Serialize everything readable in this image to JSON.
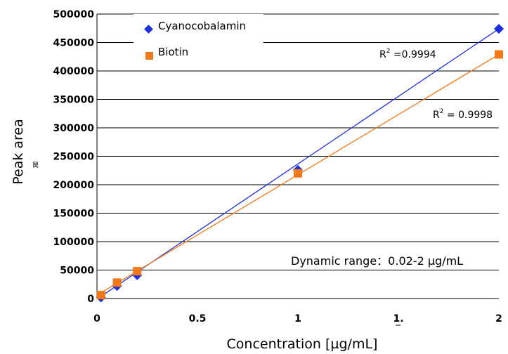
{
  "chart_data": {
    "type": "scatter",
    "xlabel": "Concentration [µg/mL]",
    "ylabel": "Peak area",
    "xlim": [
      0,
      2
    ],
    "ylim": [
      0,
      500000
    ],
    "x_ticks": [
      "0",
      "0.5",
      "1",
      "1.",
      "2"
    ],
    "x_tick_values": [
      0,
      0.5,
      1,
      1.5,
      2
    ],
    "y_ticks": [
      "0",
      "50000",
      "100000",
      "150000",
      "200000",
      "250000",
      "300000",
      "350000",
      "400000",
      "450000",
      "500000"
    ],
    "y_tick_values": [
      0,
      50000,
      100000,
      150000,
      200000,
      250000,
      300000,
      350000,
      400000,
      450000,
      500000
    ],
    "grid": "horizontal",
    "legend_position": "top-left",
    "series": [
      {
        "name": "Cyanocobalamin",
        "color": "#1f2fe0",
        "marker": "diamond",
        "x": [
          0.02,
          0.1,
          0.2,
          1,
          2
        ],
        "y": [
          2000,
          22000,
          41000,
          226000,
          474000
        ],
        "fit": {
          "x": [
            0,
            2
          ],
          "y": [
            -1000,
            474000
          ]
        },
        "r2_label": "R2 =0.9994"
      },
      {
        "name": "Biotin",
        "color": "#f07818",
        "marker": "square",
        "x": [
          0.02,
          0.1,
          0.2,
          1,
          2
        ],
        "y": [
          6000,
          28000,
          48000,
          220000,
          429000
        ],
        "fit": {
          "x": [
            0,
            2
          ],
          "y": [
            6000,
            429000
          ]
        },
        "r2_label": "R2 = 0.9998"
      }
    ],
    "annotations": {
      "dynamic_range": "Dynamic range：0.02-2 µg/mL",
      "stray_glyph": "罠"
    }
  }
}
